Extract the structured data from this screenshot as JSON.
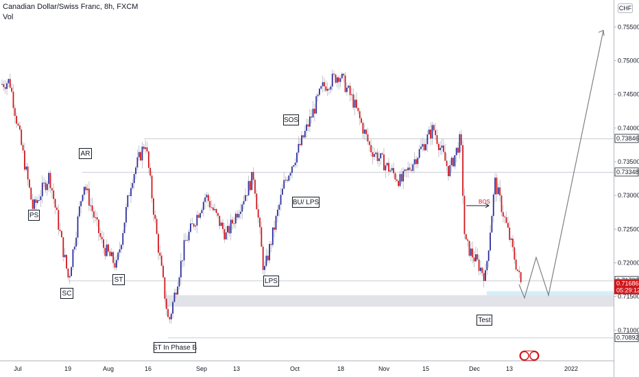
{
  "header": {
    "title": "Canadian Dollar/Swiss Franc, 8h, FXCM",
    "indicator": "Vol"
  },
  "colors": {
    "up": "#2b2c9c",
    "down": "#d0161b",
    "grid": "#c9ccd3",
    "zone": "#e1e3e8",
    "zone_light": "#d6eefa",
    "arrow": "#7f7f7f",
    "last_price_bg": "#d0161b"
  },
  "axis": {
    "currency": "CHF",
    "y_ticks": [
      "0.75500",
      "0.75000",
      "0.74500",
      "0.74000",
      "0.73500",
      "0.73000",
      "0.72500",
      "0.72000",
      "0.71500",
      "0.71000"
    ],
    "x_ticks": [
      "Jul",
      "19",
      "Aug",
      "16",
      "Sep",
      "13",
      "Oct",
      "18",
      "Nov",
      "15",
      "Dec",
      "13",
      "2022"
    ],
    "price_tags": [
      "0.73846",
      "0.73348",
      "0.71738",
      "0.70892"
    ],
    "last_price": "0.71686",
    "countdown": "05:29:12"
  },
  "chart_data": {
    "type": "candlestick",
    "ylim": [
      0.7055,
      0.759
    ],
    "x": [
      "Jul",
      "19",
      "Aug",
      "16",
      "Sep",
      "13",
      "Oct",
      "18",
      "Nov",
      "15",
      "Dec",
      "13",
      "2022"
    ],
    "close_path": [
      {
        "x": "Jul",
        "y": 0.7465
      },
      {
        "x": "Jul",
        "y": 0.747
      },
      {
        "x": "19",
        "y": 0.728
      },
      {
        "x": "19",
        "y": 0.733
      },
      {
        "x": "19",
        "y": 0.7175
      },
      {
        "x": "19",
        "y": 0.732
      },
      {
        "x": "Aug",
        "y": 0.7225
      },
      {
        "x": "Aug",
        "y": 0.7195
      },
      {
        "x": "16",
        "y": 0.7325
      },
      {
        "x": "16",
        "y": 0.738
      },
      {
        "x": "16",
        "y": 0.7245
      },
      {
        "x": "16",
        "y": 0.711
      },
      {
        "x": "Sep",
        "y": 0.723
      },
      {
        "x": "Sep",
        "y": 0.73
      },
      {
        "x": "13",
        "y": 0.724
      },
      {
        "x": "13",
        "y": 0.733
      },
      {
        "x": "13",
        "y": 0.7185
      },
      {
        "x": "13",
        "y": 0.732
      },
      {
        "x": "Oct",
        "y": 0.738
      },
      {
        "x": "Oct",
        "y": 0.746
      },
      {
        "x": "18",
        "y": 0.748
      },
      {
        "x": "18",
        "y": 0.744
      },
      {
        "x": "Nov",
        "y": 0.737
      },
      {
        "x": "Nov",
        "y": 0.732
      },
      {
        "x": "15",
        "y": 0.74
      },
      {
        "x": "15",
        "y": 0.7335
      },
      {
        "x": "Dec",
        "y": 0.723
      },
      {
        "x": "Dec",
        "y": 0.718
      },
      {
        "x": "Dec",
        "y": 0.732
      },
      {
        "x": "13",
        "y": 0.725
      },
      {
        "x": "13",
        "y": 0.7168
      }
    ],
    "levels": [
      0.73846,
      0.73348,
      0.71738,
      0.70892
    ],
    "zone": [
      0.7135,
      0.7152
    ],
    "projection": [
      0.7168,
      0.7148,
      0.7208,
      0.7152,
      0.7545
    ],
    "annotations": [
      {
        "label": "PS"
      },
      {
        "label": "AR"
      },
      {
        "label": "SC"
      },
      {
        "label": "ST"
      },
      {
        "label": "ST In Phase B"
      },
      {
        "label": "SOS"
      },
      {
        "label": "BU/ LPS"
      },
      {
        "label": "LPS"
      },
      {
        "label": "Test"
      }
    ],
    "bos_label": "BOS"
  }
}
